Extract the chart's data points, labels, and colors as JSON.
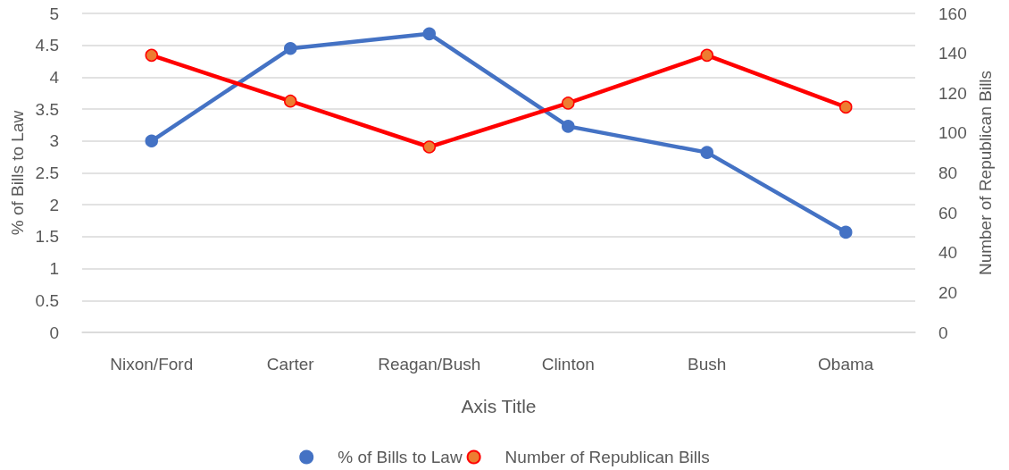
{
  "chart_data": {
    "type": "line",
    "xlabel": "Axis Title",
    "ylabel": "% of Bills to Law",
    "y2label": "Number of Republican Bills",
    "categories": [
      "Nixon/Ford",
      "Carter",
      "Reagan/Bush",
      "Clinton",
      "Bush",
      "Obama"
    ],
    "series": [
      {
        "name": "% of Bills to Law",
        "color": "#4472c4",
        "values": [
          3.0,
          4.45,
          4.68,
          3.23,
          2.82,
          1.57
        ]
      },
      {
        "name": "Number of Republican Bills",
        "color": "#ff0000",
        "axis": "y2",
        "values": [
          139,
          116,
          93,
          115,
          139,
          113
        ]
      }
    ],
    "ylim": [
      0,
      5
    ],
    "yticks": [
      0,
      0.5,
      1,
      1.5,
      2,
      2.5,
      3,
      3.5,
      4,
      4.5,
      5
    ],
    "y2lim": [
      0,
      160
    ],
    "y2ticks": [
      0,
      20,
      40,
      60,
      80,
      100,
      120,
      140,
      160
    ],
    "grid": "y",
    "legend": "bottom",
    "marker": "circle",
    "line_style": "solid"
  }
}
